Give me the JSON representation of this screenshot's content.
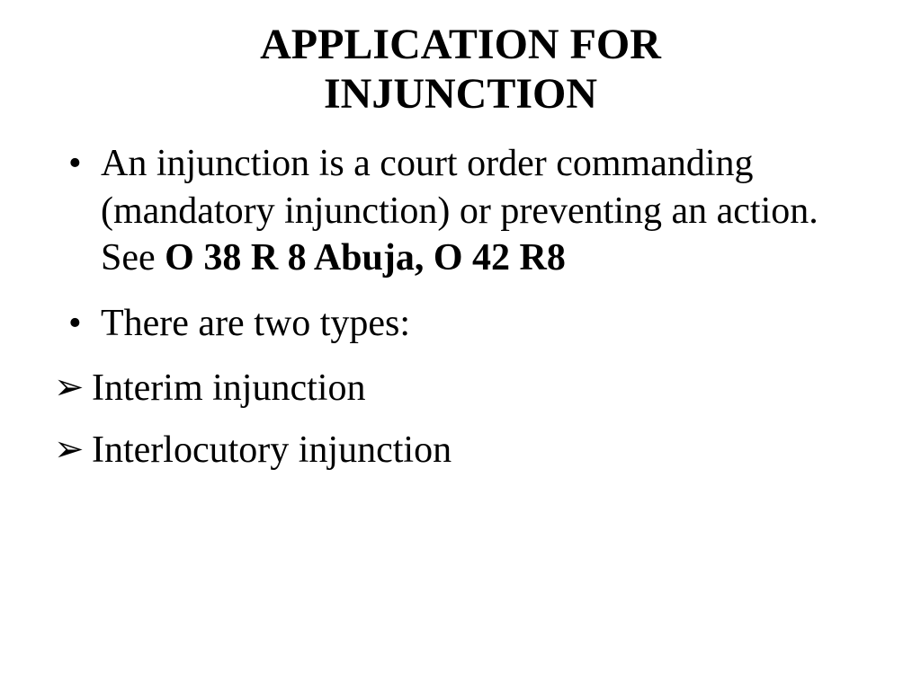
{
  "title_line1": "APPLICATION FOR",
  "title_line2": "INJUNCTION",
  "bullets": [
    {
      "text_prefix": "An injunction is a court order commanding (mandatory injunction) or preventing an action. See ",
      "text_bold": "O 38 R 8 Abuja, O 42 R8"
    },
    {
      "text_prefix": "There are two types:",
      "text_bold": ""
    }
  ],
  "arrows": [
    "Interim injunction",
    "Interlocutory injunction"
  ],
  "styling": {
    "background_color": "#ffffff",
    "text_color": "#000000",
    "font_family": "Times New Roman",
    "title_fontsize": 48,
    "title_fontweight": 700,
    "body_fontsize": 42,
    "bullet_marker": "disc",
    "arrow_marker": "➢"
  }
}
